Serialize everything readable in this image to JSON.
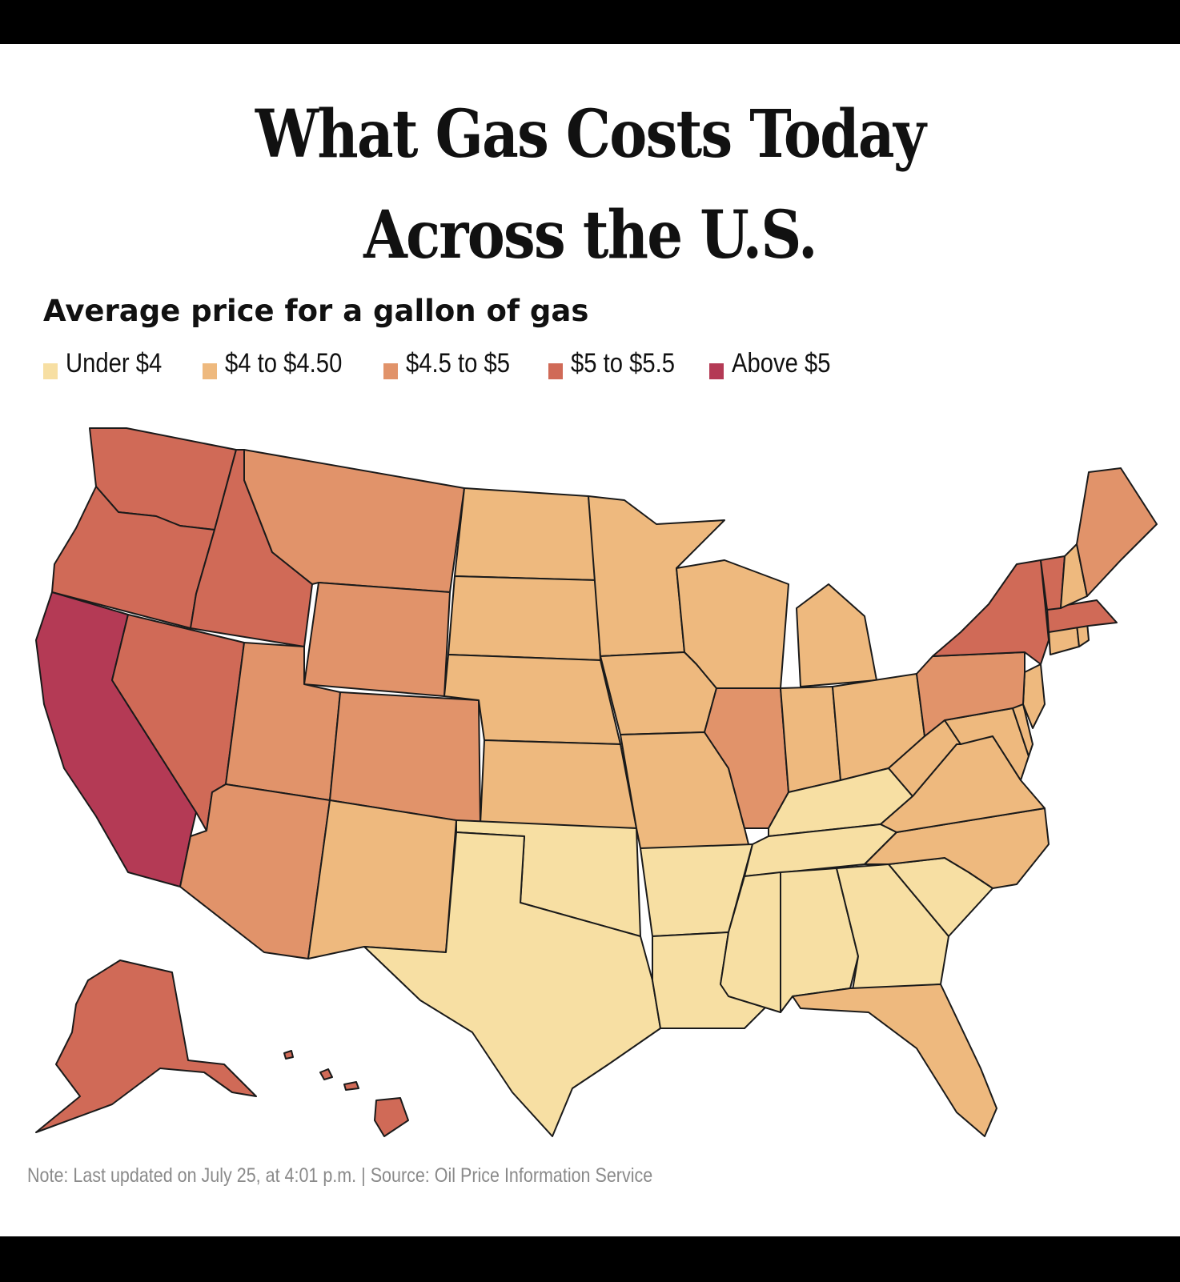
{
  "title_line1": "What Gas Costs Today",
  "title_line2": "Across the U.S.",
  "subtitle": "Average price for a gallon of gas",
  "legend": [
    {
      "label": "Under $4",
      "color": "#f7dfa3"
    },
    {
      "label": "$4 to $4.50",
      "color": "#eeb97e"
    },
    {
      "label": "$4.5 to $5",
      "color": "#e1936a"
    },
    {
      "label": "$5 to $5.5",
      "color": "#d06a57"
    },
    {
      "label": "Above $5",
      "color": "#b43a55"
    }
  ],
  "note": "Note: Last updated on July 25, at 4:01 p.m. | Source: Oil Price Information Service",
  "states": [
    {
      "name": "Washington",
      "bin": 3
    },
    {
      "name": "Oregon",
      "bin": 3
    },
    {
      "name": "California",
      "bin": 4
    },
    {
      "name": "Idaho",
      "bin": 3
    },
    {
      "name": "Nevada",
      "bin": 3
    },
    {
      "name": "Montana",
      "bin": 2
    },
    {
      "name": "Wyoming",
      "bin": 2
    },
    {
      "name": "Utah",
      "bin": 2
    },
    {
      "name": "Colorado",
      "bin": 2
    },
    {
      "name": "Arizona",
      "bin": 2
    },
    {
      "name": "New Mexico",
      "bin": 1
    },
    {
      "name": "North Dakota",
      "bin": 1
    },
    {
      "name": "South Dakota",
      "bin": 1
    },
    {
      "name": "Nebraska",
      "bin": 1
    },
    {
      "name": "Kansas",
      "bin": 1
    },
    {
      "name": "Oklahoma",
      "bin": 0
    },
    {
      "name": "Texas",
      "bin": 0
    },
    {
      "name": "Minnesota",
      "bin": 1
    },
    {
      "name": "Iowa",
      "bin": 1
    },
    {
      "name": "Missouri",
      "bin": 1
    },
    {
      "name": "Arkansas",
      "bin": 0
    },
    {
      "name": "Louisiana",
      "bin": 0
    },
    {
      "name": "Wisconsin",
      "bin": 1
    },
    {
      "name": "Illinois",
      "bin": 2
    },
    {
      "name": "Michigan",
      "bin": 1
    },
    {
      "name": "Indiana",
      "bin": 1
    },
    {
      "name": "Ohio",
      "bin": 1
    },
    {
      "name": "Kentucky",
      "bin": 0
    },
    {
      "name": "Tennessee",
      "bin": 0
    },
    {
      "name": "Mississippi",
      "bin": 0
    },
    {
      "name": "Alabama",
      "bin": 0
    },
    {
      "name": "Georgia",
      "bin": 0
    },
    {
      "name": "Florida",
      "bin": 1
    },
    {
      "name": "South Carolina",
      "bin": 0
    },
    {
      "name": "North Carolina",
      "bin": 1
    },
    {
      "name": "Virginia",
      "bin": 1
    },
    {
      "name": "West Virginia",
      "bin": 1
    },
    {
      "name": "Maryland",
      "bin": 1
    },
    {
      "name": "Delaware",
      "bin": 1
    },
    {
      "name": "New Jersey",
      "bin": 1
    },
    {
      "name": "Pennsylvania",
      "bin": 2
    },
    {
      "name": "New York",
      "bin": 3
    },
    {
      "name": "Connecticut",
      "bin": 1
    },
    {
      "name": "Rhode Island",
      "bin": 1
    },
    {
      "name": "Massachusetts",
      "bin": 3
    },
    {
      "name": "Vermont",
      "bin": 3
    },
    {
      "name": "New Hampshire",
      "bin": 1
    },
    {
      "name": "Maine",
      "bin": 2
    },
    {
      "name": "Alaska",
      "bin": 3
    },
    {
      "name": "Hawaii",
      "bin": 3
    }
  ]
}
